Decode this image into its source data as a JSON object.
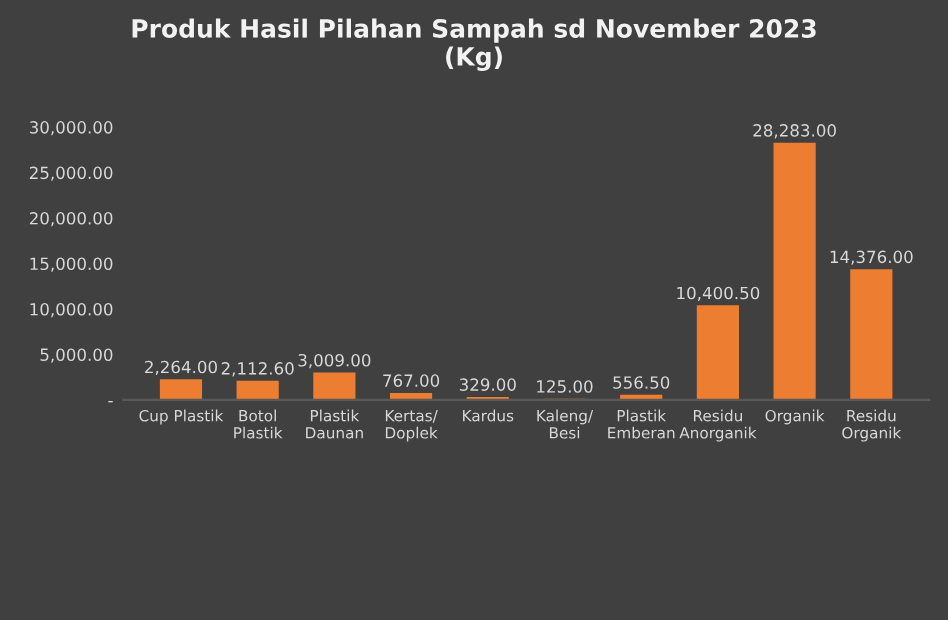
{
  "chart_data": {
    "type": "bar",
    "title": "Produk Hasil Pilahan Sampah sd November 2023\n(Kg)",
    "categories": [
      "Cup Plastik",
      "Botol\nPlastik",
      "Plastik\nDaunan",
      "Kertas/\nDoplek",
      "Kardus",
      "Kaleng/\nBesi",
      "Plastik\nEmberan",
      "Residu\nAnorganik",
      "Organik",
      "Residu\nOrganik"
    ],
    "values": [
      2264,
      2112.6,
      3009,
      767,
      329,
      125,
      556.5,
      10400.5,
      28283,
      14376
    ],
    "value_labels": [
      "2,264.00",
      "2,112.60",
      "3,009.00",
      "767.00",
      "329.00",
      "125.00",
      "556.50",
      "10,400.50",
      "28,283.00",
      "14,376.00"
    ],
    "color": "#ed7d31",
    "ylim": [
      0,
      30000
    ],
    "yticks": [
      {
        "value": 0,
        "label": "-"
      },
      {
        "value": 5000,
        "label": "5,000.00"
      },
      {
        "value": 10000,
        "label": "10,000.00"
      },
      {
        "value": 15000,
        "label": "15,000.00"
      },
      {
        "value": 20000,
        "label": "20,000.00"
      },
      {
        "value": 25000,
        "label": "25,000.00"
      },
      {
        "value": 30000,
        "label": "30,000.00"
      }
    ],
    "grid": false
  }
}
